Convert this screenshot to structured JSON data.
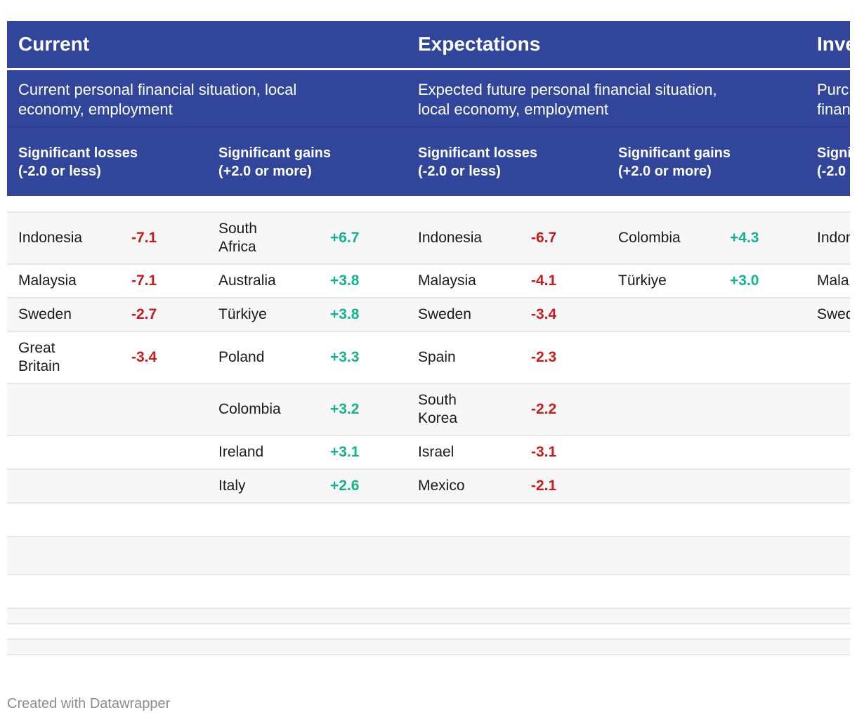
{
  "colors": {
    "header_bg": "#31469b",
    "negative": "#c81b1b",
    "positive": "#16b28f",
    "stripe": "#f7f7f7"
  },
  "header": {
    "groups": [
      {
        "title": "Current",
        "subtitle_lines": [
          "Current personal financial situation, local",
          "economy, employment"
        ]
      },
      {
        "title": "Expectations",
        "subtitle_lines": [
          "Expected future personal financial situation,",
          "local economy, employment"
        ]
      },
      {
        "title": "Inve",
        "subtitle_lines": [
          "Purc",
          "finan"
        ]
      }
    ],
    "columns": [
      {
        "lines": [
          "Significant losses",
          "(-2.0 or less)"
        ]
      },
      {
        "lines": [
          "Significant gains",
          "(+2.0 or more)"
        ]
      },
      {
        "lines": [
          "Significant losses",
          "(-2.0 or less)"
        ]
      },
      {
        "lines": [
          "Significant gains",
          "(+2.0 or more)"
        ]
      },
      {
        "lines": [
          "Signi",
          "(-2.0"
        ]
      }
    ]
  },
  "chart_data": {
    "type": "table",
    "title": "",
    "groups": [
      "Current",
      "Expectations",
      "Inve"
    ],
    "rows": [
      {
        "current_losses": {
          "country_lines": [
            "Indonesia"
          ],
          "value": "-7.1"
        },
        "current_gains": {
          "country_lines": [
            "South",
            "Africa"
          ],
          "value": "+6.7"
        },
        "expect_losses": {
          "country_lines": [
            "Indonesia"
          ],
          "value": "-6.7"
        },
        "expect_gains": {
          "country_lines": [
            "Colombia"
          ],
          "value": "+4.3"
        },
        "inv_losses": {
          "country_lines": [
            "Indon"
          ],
          "value": ""
        }
      },
      {
        "current_losses": {
          "country_lines": [
            "Malaysia"
          ],
          "value": "-7.1"
        },
        "current_gains": {
          "country_lines": [
            "Australia"
          ],
          "value": "+3.8"
        },
        "expect_losses": {
          "country_lines": [
            "Malaysia"
          ],
          "value": "-4.1"
        },
        "expect_gains": {
          "country_lines": [
            "Türkiye"
          ],
          "value": "+3.0"
        },
        "inv_losses": {
          "country_lines": [
            "Mala"
          ],
          "value": ""
        }
      },
      {
        "current_losses": {
          "country_lines": [
            "Sweden"
          ],
          "value": "-2.7"
        },
        "current_gains": {
          "country_lines": [
            "Türkiye"
          ],
          "value": "+3.8"
        },
        "expect_losses": {
          "country_lines": [
            "Sweden"
          ],
          "value": "-3.4"
        },
        "expect_gains": {
          "country_lines": [],
          "value": ""
        },
        "inv_losses": {
          "country_lines": [
            "Swed"
          ],
          "value": ""
        }
      },
      {
        "current_losses": {
          "country_lines": [
            "Great",
            "Britain"
          ],
          "value": "-3.4"
        },
        "current_gains": {
          "country_lines": [
            "Poland"
          ],
          "value": "+3.3"
        },
        "expect_losses": {
          "country_lines": [
            "Spain"
          ],
          "value": "-2.3"
        },
        "expect_gains": {
          "country_lines": [],
          "value": ""
        },
        "inv_losses": {
          "country_lines": [],
          "value": ""
        }
      },
      {
        "current_losses": {
          "country_lines": [],
          "value": ""
        },
        "current_gains": {
          "country_lines": [
            "Colombia"
          ],
          "value": "+3.2"
        },
        "expect_losses": {
          "country_lines": [
            "South",
            "Korea"
          ],
          "value": "-2.2"
        },
        "expect_gains": {
          "country_lines": [],
          "value": ""
        },
        "inv_losses": {
          "country_lines": [],
          "value": ""
        }
      },
      {
        "current_losses": {
          "country_lines": [],
          "value": ""
        },
        "current_gains": {
          "country_lines": [
            "Ireland"
          ],
          "value": "+3.1"
        },
        "expect_losses": {
          "country_lines": [
            "Israel"
          ],
          "value": "-3.1"
        },
        "expect_gains": {
          "country_lines": [],
          "value": ""
        },
        "inv_losses": {
          "country_lines": [],
          "value": ""
        }
      },
      {
        "current_losses": {
          "country_lines": [],
          "value": ""
        },
        "current_gains": {
          "country_lines": [
            "Italy"
          ],
          "value": "+2.6"
        },
        "expect_losses": {
          "country_lines": [
            "Mexico"
          ],
          "value": "-2.1"
        },
        "expect_gains": {
          "country_lines": [],
          "value": ""
        },
        "inv_losses": {
          "country_lines": [],
          "value": ""
        }
      }
    ]
  },
  "footer": {
    "credit": "Created with Datawrapper"
  }
}
